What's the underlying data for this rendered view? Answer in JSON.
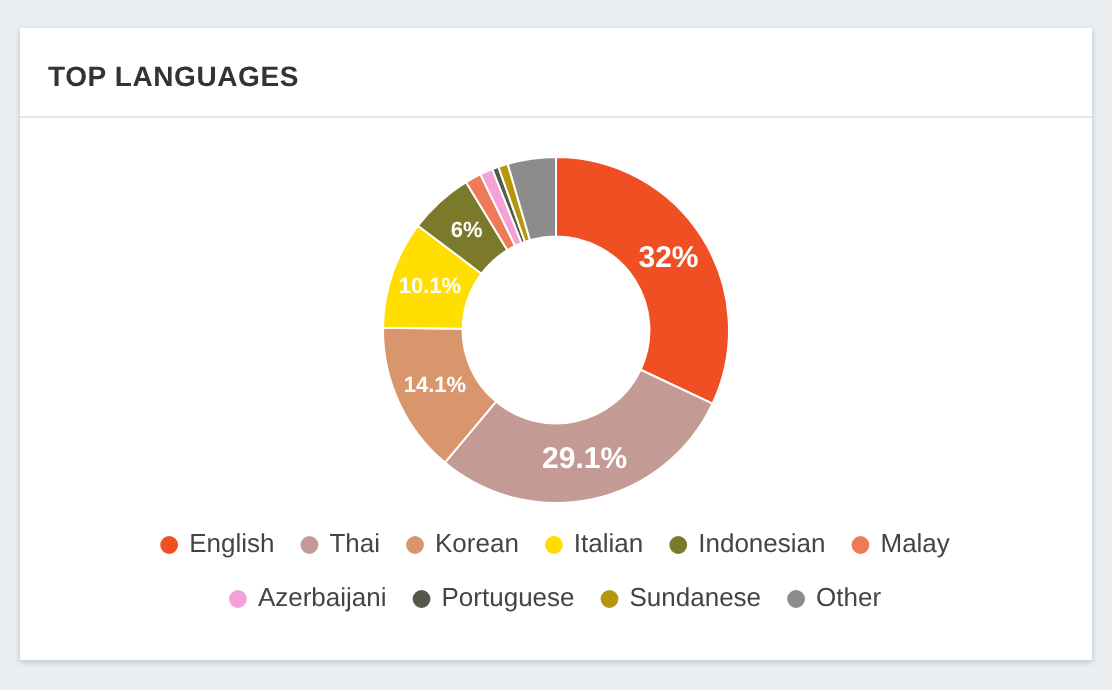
{
  "chart_data": {
    "type": "donut",
    "title": "TOP LANGUAGES",
    "categories": [
      "English",
      "Thai",
      "Korean",
      "Italian",
      "Indonesian",
      "Malay",
      "Azerbaijani",
      "Portuguese",
      "Sundanese",
      "Other"
    ],
    "values": [
      32,
      29.1,
      14.1,
      10.1,
      6,
      1.5,
      1.2,
      0.6,
      0.9,
      4.5
    ],
    "value_labels": [
      "32%",
      "29.1%",
      "14.1%",
      "10.1%",
      "6%",
      null,
      null,
      null,
      null,
      null
    ],
    "colors": [
      "#f04e23",
      "#c49a94",
      "#d9966c",
      "#ffde00",
      "#7a7a2a",
      "#ef7a5a",
      "#f5a0d6",
      "#555a48",
      "#b8960c",
      "#8c8c8c"
    ],
    "legend": "bottom"
  }
}
